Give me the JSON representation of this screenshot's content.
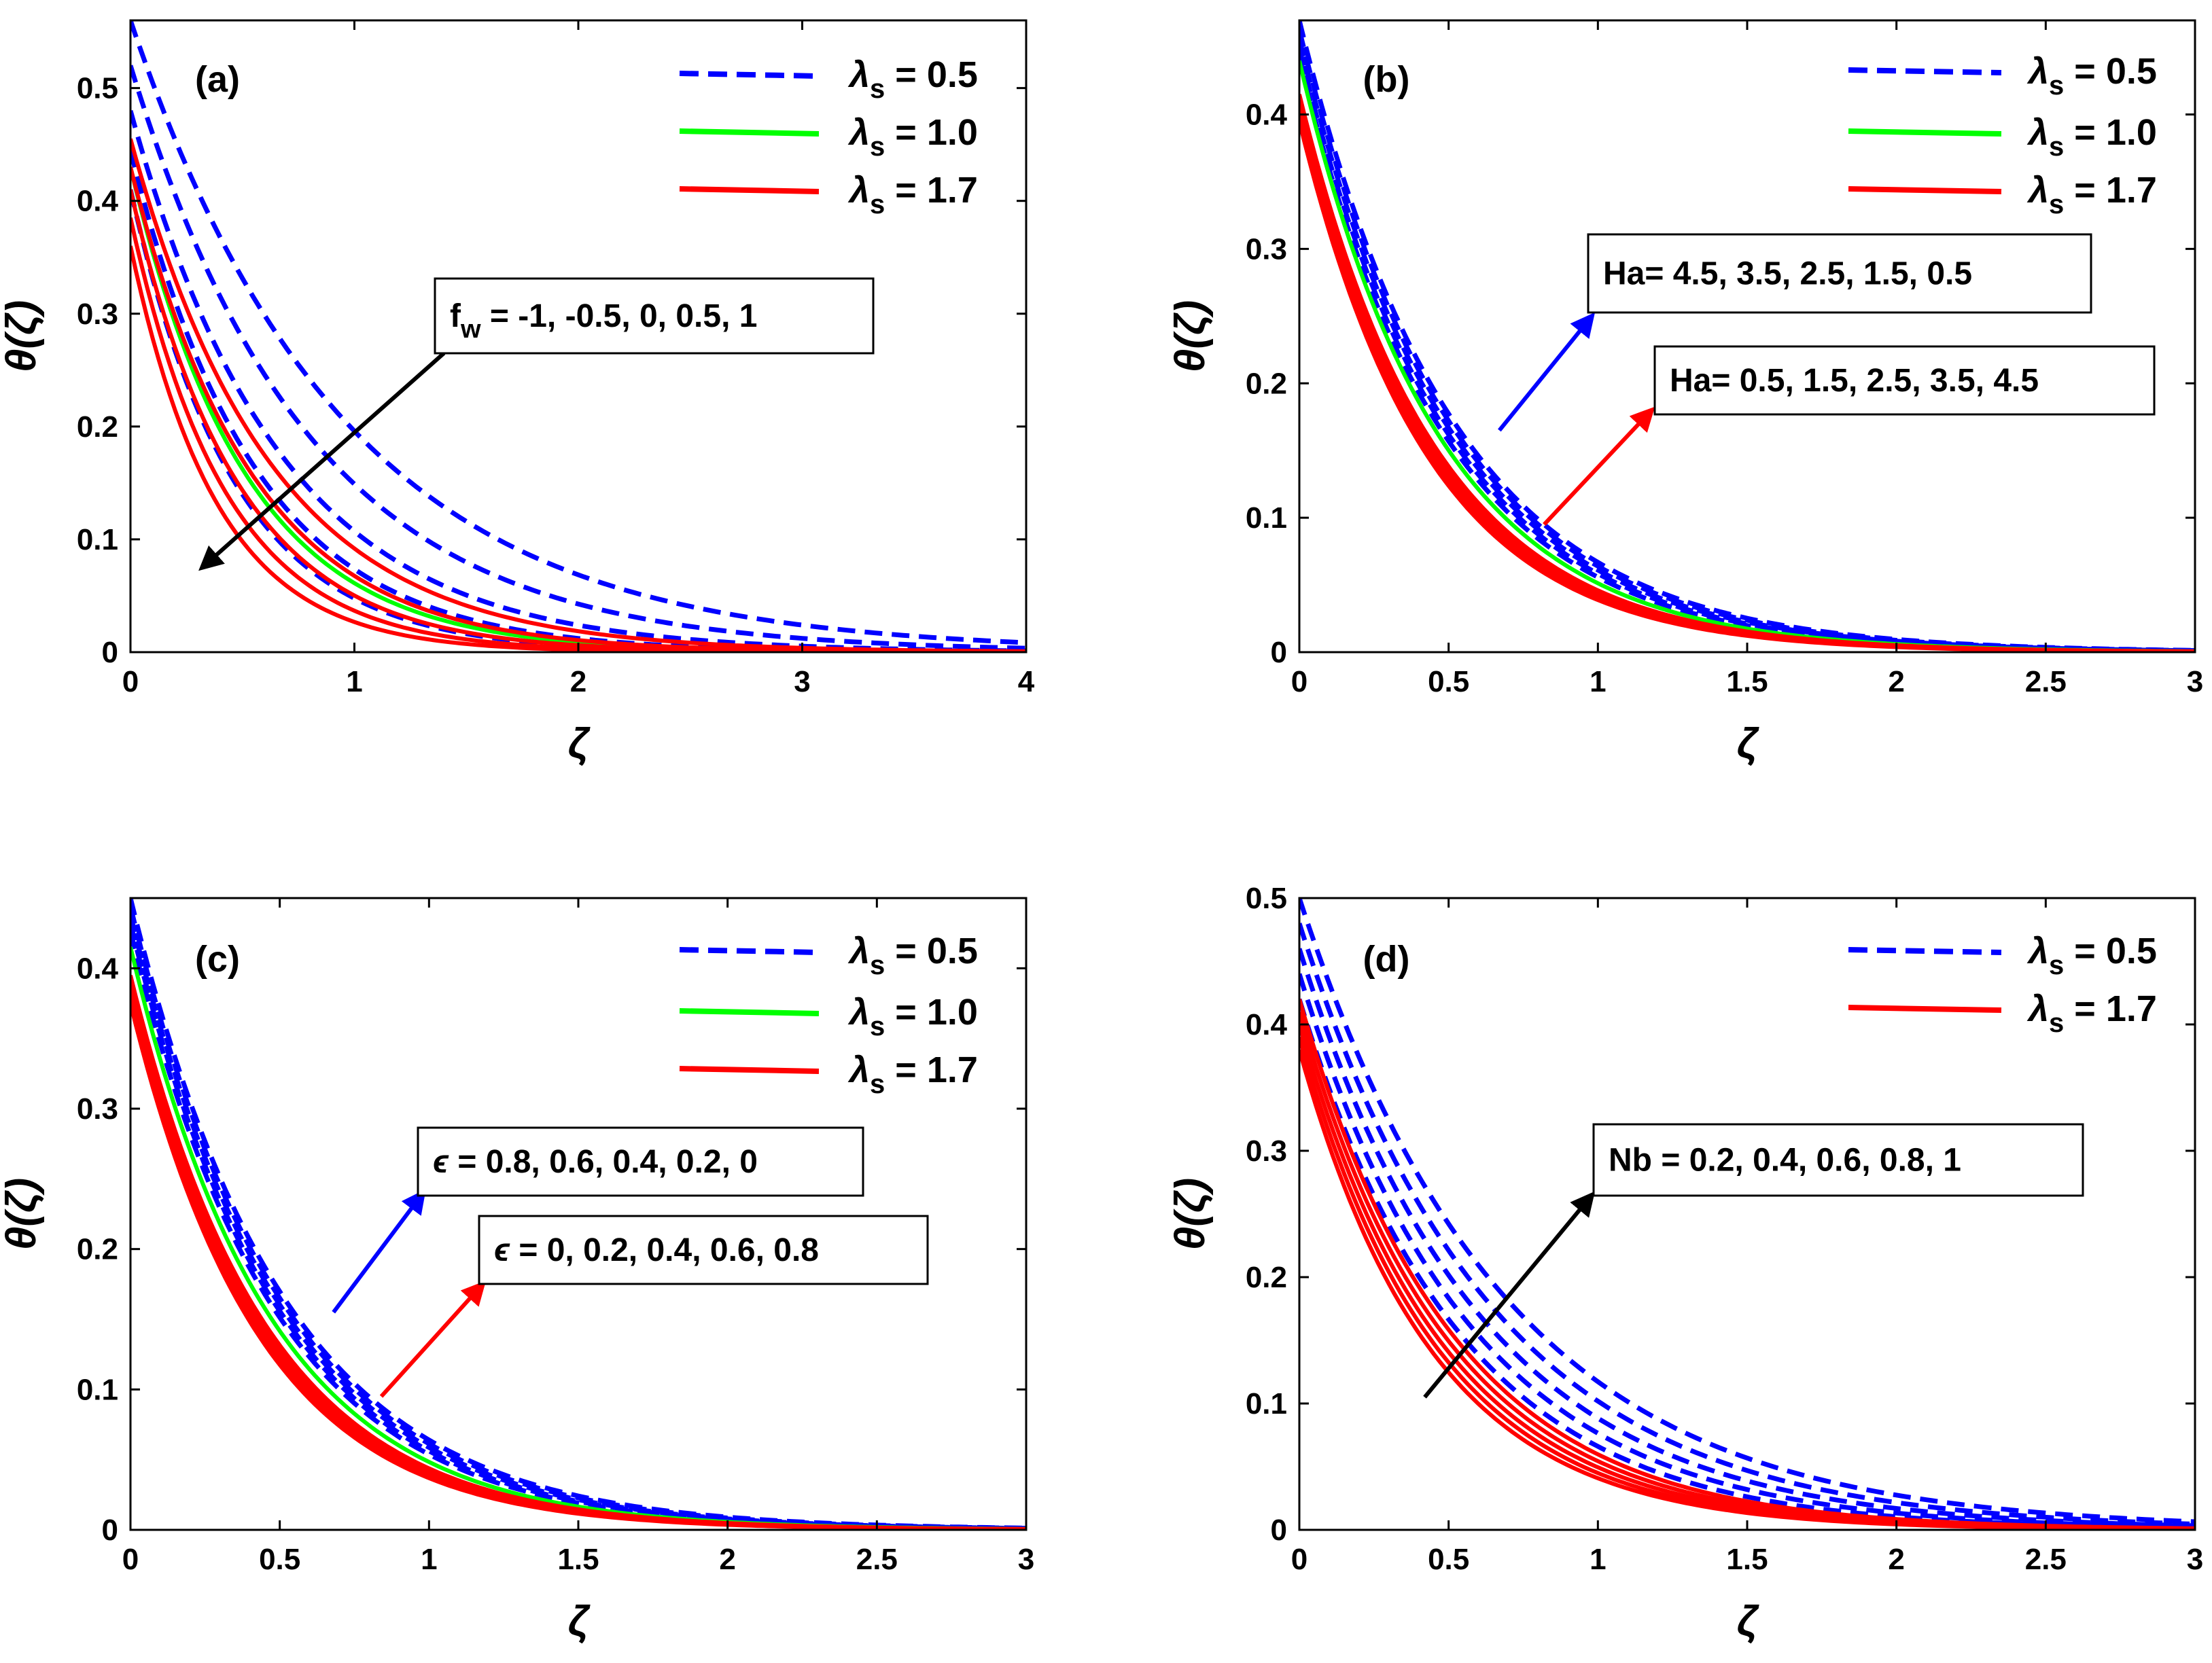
{
  "chart_data": [
    {
      "type": "line",
      "panel_label": "(a)",
      "xlabel": "ζ",
      "ylabel": "θ(ζ)",
      "xlim": [
        0,
        4
      ],
      "ylim": [
        0,
        0.56
      ],
      "xticks": [
        0,
        1,
        2,
        3,
        4
      ],
      "xtick_labels": [
        "0",
        "1",
        "2",
        "3",
        "4"
      ],
      "yticks": [
        0,
        0.1,
        0.2,
        0.3,
        0.4,
        0.5
      ],
      "ytick_labels": [
        "0",
        "0.1",
        "0.2",
        "0.3",
        "0.4",
        "0.5"
      ],
      "legend": [
        {
          "symbol": "λ",
          "sub": "s",
          "value": " = 0.5",
          "color": "#0000ff",
          "dashed": true
        },
        {
          "symbol": "λ",
          "sub": "s",
          "value": " = 1.0",
          "color": "#00ff00",
          "dashed": false
        },
        {
          "symbol": "λ",
          "sub": "s",
          "value": " = 1.7",
          "color": "#ff0000",
          "dashed": false
        }
      ],
      "series": [
        {
          "name": "λs = 0.5",
          "color": "#0000ff",
          "dashed": true,
          "curves": [
            {
              "theta0": 0.56,
              "decay": 1.05
            },
            {
              "theta0": 0.52,
              "decay": 1.25
            },
            {
              "theta0": 0.48,
              "decay": 1.5
            },
            {
              "theta0": 0.445,
              "decay": 1.8
            },
            {
              "theta0": 0.41,
              "decay": 2.15
            }
          ]
        },
        {
          "name": "λs = 1.0",
          "color": "#00ff00",
          "dashed": false,
          "curves": [
            {
              "theta0": 0.43,
              "decay": 1.95
            }
          ]
        },
        {
          "name": "λs = 1.7",
          "color": "#ff0000",
          "dashed": false,
          "curves": [
            {
              "theta0": 0.455,
              "decay": 1.6
            },
            {
              "theta0": 0.43,
              "decay": 1.85
            },
            {
              "theta0": 0.41,
              "decay": 2.1
            },
            {
              "theta0": 0.385,
              "decay": 2.35
            },
            {
              "theta0": 0.36,
              "decay": 2.6
            }
          ]
        }
      ],
      "annotation": {
        "label": "f",
        "sub": "w",
        "value": " = -1, -0.5, 0, 0.5, 1",
        "arrow_color": "#000000",
        "arrow_from": [
          1.4,
          0.265
        ],
        "arrow_to": [
          0.32,
          0.075
        ]
      }
    },
    {
      "type": "line",
      "panel_label": "(b)",
      "xlabel": "ζ",
      "ylabel": "θ(ζ)",
      "xlim": [
        0,
        3
      ],
      "ylim": [
        0,
        0.47
      ],
      "xticks": [
        0,
        0.5,
        1,
        1.5,
        2,
        2.5,
        3
      ],
      "xtick_labels": [
        "0",
        "0.5",
        "1",
        "1.5",
        "2",
        "2.5",
        "3"
      ],
      "yticks": [
        0,
        0.1,
        0.2,
        0.3,
        0.4
      ],
      "ytick_labels": [
        "0",
        "0.1",
        "0.2",
        "0.3",
        "0.4"
      ],
      "legend": [
        {
          "symbol": "λ",
          "sub": "s",
          "value": " = 0.5",
          "color": "#0000ff",
          "dashed": true
        },
        {
          "symbol": "λ",
          "sub": "s",
          "value": " = 1.0",
          "color": "#00ff00",
          "dashed": false
        },
        {
          "symbol": "λ",
          "sub": "s",
          "value": " = 1.7",
          "color": "#ff0000",
          "dashed": false
        }
      ],
      "series": [
        {
          "name": "λs = 0.5",
          "color": "#0000ff",
          "dashed": true,
          "curves": [
            {
              "theta0": 0.47,
              "decay": 1.95
            },
            {
              "theta0": 0.463,
              "decay": 1.98
            },
            {
              "theta0": 0.456,
              "decay": 2.01
            },
            {
              "theta0": 0.449,
              "decay": 2.04
            },
            {
              "theta0": 0.442,
              "decay": 2.07
            }
          ]
        },
        {
          "name": "λs = 1.0",
          "color": "#00ff00",
          "dashed": false,
          "curves": [
            {
              "theta0": 0.44,
              "decay": 2.15
            }
          ]
        },
        {
          "name": "λs = 1.7",
          "color": "#ff0000",
          "dashed": false,
          "curves": [
            {
              "theta0": 0.415,
              "decay": 2.2
            },
            {
              "theta0": 0.41,
              "decay": 2.23
            },
            {
              "theta0": 0.405,
              "decay": 2.26
            },
            {
              "theta0": 0.4,
              "decay": 2.29
            },
            {
              "theta0": 0.395,
              "decay": 2.32
            }
          ]
        }
      ],
      "annotations": [
        {
          "label": "Ha",
          "sub": "",
          "value": "= 4.5, 3.5, 2.5, 1.5, 0.5",
          "arrow_color": "#0000ff",
          "arrow_from": [
            0.67,
            0.165
          ],
          "arrow_to": [
            0.98,
            0.25
          ]
        },
        {
          "label": "Ha",
          "sub": "",
          "value": "= 0.5, 1.5, 2.5, 3.5, 4.5",
          "arrow_color": "#ff0000",
          "arrow_from": [
            0.82,
            0.095
          ],
          "arrow_to": [
            1.18,
            0.18
          ]
        }
      ]
    },
    {
      "type": "line",
      "panel_label": "(c)",
      "xlabel": "ζ",
      "ylabel": "θ(ζ)",
      "xlim": [
        0,
        3
      ],
      "ylim": [
        0,
        0.45
      ],
      "xticks": [
        0,
        0.5,
        1,
        1.5,
        2,
        2.5,
        3
      ],
      "xtick_labels": [
        "0",
        "0.5",
        "1",
        "1.5",
        "2",
        "2.5",
        "3"
      ],
      "yticks": [
        0,
        0.1,
        0.2,
        0.3,
        0.4
      ],
      "ytick_labels": [
        "0",
        "0.1",
        "0.2",
        "0.3",
        "0.4"
      ],
      "legend": [
        {
          "symbol": "λ",
          "sub": "s",
          "value": " = 0.5",
          "color": "#0000ff",
          "dashed": true
        },
        {
          "symbol": "λ",
          "sub": "s",
          "value": " = 1.0",
          "color": "#00ff00",
          "dashed": false
        },
        {
          "symbol": "λ",
          "sub": "s",
          "value": " = 1.7",
          "color": "#ff0000",
          "dashed": false
        }
      ],
      "series": [
        {
          "name": "λs = 0.5",
          "color": "#0000ff",
          "dashed": true,
          "curves": [
            {
              "theta0": 0.45,
              "decay": 1.95
            },
            {
              "theta0": 0.444,
              "decay": 1.98
            },
            {
              "theta0": 0.438,
              "decay": 2.01
            },
            {
              "theta0": 0.432,
              "decay": 2.04
            },
            {
              "theta0": 0.426,
              "decay": 2.07
            }
          ]
        },
        {
          "name": "λs = 1.0",
          "color": "#00ff00",
          "dashed": false,
          "curves": [
            {
              "theta0": 0.415,
              "decay": 2.15
            }
          ]
        },
        {
          "name": "λs = 1.7",
          "color": "#ff0000",
          "dashed": false,
          "curves": [
            {
              "theta0": 0.395,
              "decay": 2.2
            },
            {
              "theta0": 0.39,
              "decay": 2.23
            },
            {
              "theta0": 0.385,
              "decay": 2.26
            },
            {
              "theta0": 0.38,
              "decay": 2.29
            },
            {
              "theta0": 0.375,
              "decay": 2.32
            }
          ]
        }
      ],
      "annotations": [
        {
          "label": "ϵ",
          "sub": "",
          "value": " = 0.8, 0.6, 0.4, 0.2, 0",
          "arrow_color": "#0000ff",
          "arrow_from": [
            0.68,
            0.155
          ],
          "arrow_to": [
            0.98,
            0.24
          ]
        },
        {
          "label": "ϵ",
          "sub": "",
          "value": " = 0, 0.2, 0.4, 0.6, 0.8",
          "arrow_color": "#ff0000",
          "arrow_from": [
            0.84,
            0.095
          ],
          "arrow_to": [
            1.18,
            0.175
          ]
        }
      ]
    },
    {
      "type": "line",
      "panel_label": "(d)",
      "xlabel": "ζ",
      "ylabel": "θ(ζ)",
      "xlim": [
        0,
        3
      ],
      "ylim": [
        0,
        0.5
      ],
      "xticks": [
        0,
        0.5,
        1,
        1.5,
        2,
        2.5,
        3
      ],
      "xtick_labels": [
        "0",
        "0.5",
        "1",
        "1.5",
        "2",
        "2.5",
        "3"
      ],
      "yticks": [
        0,
        0.1,
        0.2,
        0.3,
        0.4,
        0.5
      ],
      "ytick_labels": [
        "0",
        "0.1",
        "0.2",
        "0.3",
        "0.4",
        "0.5"
      ],
      "legend": [
        {
          "symbol": "λ",
          "sub": "s",
          "value": " = 0.5",
          "color": "#0000ff",
          "dashed": true
        },
        {
          "symbol": "λ",
          "sub": "s",
          "value": " = 1.7",
          "color": "#ff0000",
          "dashed": false
        }
      ],
      "series": [
        {
          "name": "λs = 0.5",
          "color": "#0000ff",
          "dashed": true,
          "curves": [
            {
              "theta0": 0.5,
              "decay": 1.45
            },
            {
              "theta0": 0.48,
              "decay": 1.55
            },
            {
              "theta0": 0.46,
              "decay": 1.65
            },
            {
              "theta0": 0.44,
              "decay": 1.75
            },
            {
              "theta0": 0.42,
              "decay": 1.85
            }
          ]
        },
        {
          "name": "λs = 1.7",
          "color": "#ff0000",
          "dashed": false,
          "curves": [
            {
              "theta0": 0.42,
              "decay": 1.95
            },
            {
              "theta0": 0.41,
              "decay": 2.02
            },
            {
              "theta0": 0.4,
              "decay": 2.09
            },
            {
              "theta0": 0.39,
              "decay": 2.16
            },
            {
              "theta0": 0.38,
              "decay": 2.23
            }
          ]
        }
      ],
      "annotation": {
        "label": "Nb",
        "sub": "",
        "value": " = 0.2, 0.4, 0.6, 0.8, 1",
        "arrow_color": "#000000",
        "arrow_from": [
          0.42,
          0.105
        ],
        "arrow_to": [
          0.98,
          0.265
        ]
      }
    }
  ]
}
